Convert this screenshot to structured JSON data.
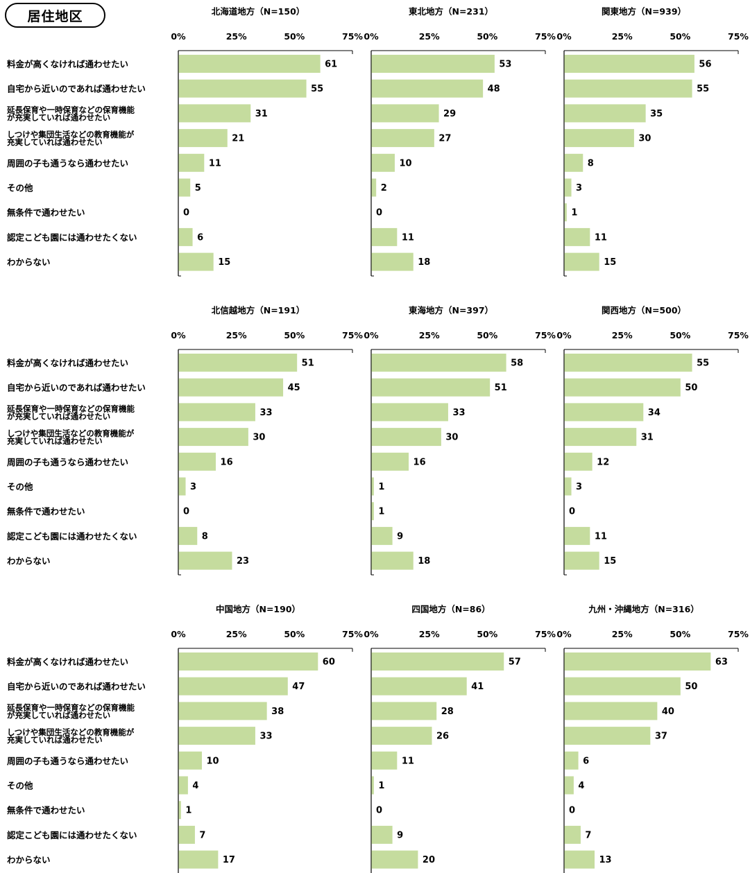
{
  "badge_label": "居住地区",
  "colors": {
    "bar": "#c5dc9e",
    "axis": "#000000"
  },
  "chart_data": {
    "type": "bar",
    "orientation": "horizontal",
    "xlim": [
      0,
      75
    ],
    "x_ticks": [
      "0%",
      "25%",
      "50%",
      "75%"
    ],
    "categories": [
      "料金が高くなければ通わせたい",
      "自宅から近いのであれば通わせたい",
      "延長保育や一時保育などの保育機能\nが充実していれば通わせたい",
      "しつけや集団生活などの教育機能が\n充実していれば通わせたい",
      "周囲の子も通うなら通わせたい",
      "その他",
      "無条件で通わせたい",
      "認定こども園には通わせたくない",
      "わからない"
    ],
    "series": [
      {
        "name": "北海道地方（N=150）",
        "values": [
          61,
          55,
          31,
          21,
          11,
          5,
          0,
          6,
          15
        ]
      },
      {
        "name": "東北地方（N=231）",
        "values": [
          53,
          48,
          29,
          27,
          10,
          2,
          0,
          11,
          18
        ]
      },
      {
        "name": "関東地方（N=939）",
        "values": [
          56,
          55,
          35,
          30,
          8,
          3,
          1,
          11,
          15
        ]
      },
      {
        "name": "北信越地方（N=191）",
        "values": [
          51,
          45,
          33,
          30,
          16,
          3,
          0,
          8,
          23
        ]
      },
      {
        "name": "東海地方（N=397）",
        "values": [
          58,
          51,
          33,
          30,
          16,
          1,
          1,
          9,
          18
        ]
      },
      {
        "name": "関西地方（N=500）",
        "values": [
          55,
          50,
          34,
          31,
          12,
          3,
          0,
          11,
          15
        ]
      },
      {
        "name": "中国地方（N=190）",
        "values": [
          60,
          47,
          38,
          33,
          10,
          4,
          1,
          7,
          17
        ]
      },
      {
        "name": "四国地方（N=86）",
        "values": [
          57,
          41,
          28,
          26,
          11,
          1,
          0,
          9,
          20
        ]
      },
      {
        "name": "九州・沖縄地方（N=316）",
        "values": [
          63,
          50,
          40,
          37,
          6,
          4,
          0,
          7,
          13
        ]
      }
    ]
  }
}
